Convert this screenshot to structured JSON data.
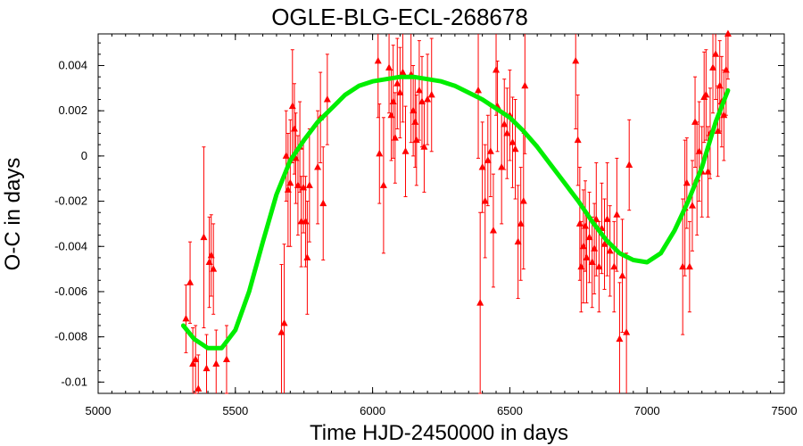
{
  "chart_data": {
    "type": "scatter",
    "title": "OGLE-BLG-ECL-268678",
    "xlabel": "Time HJD-2450000 in days",
    "ylabel": "O-C in days",
    "xlim": [
      5000,
      7500
    ],
    "ylim": [
      -0.0105,
      0.0054
    ],
    "xticks": [
      5000,
      5500,
      6000,
      6500,
      7000,
      7500
    ],
    "xtick_labels": [
      "5000",
      "5500",
      "6000",
      "6500",
      "7000",
      "7500"
    ],
    "yticks": [
      -0.01,
      -0.008,
      -0.006,
      -0.004,
      -0.002,
      0,
      0.002,
      0.004
    ],
    "ytick_labels": [
      "-0.01",
      "-0.008",
      "-0.006",
      "-0.004",
      "-0.002",
      "0",
      "0.002",
      "0.004"
    ],
    "grid": false,
    "colors": {
      "data": "#ff0000",
      "fit": "#00ee00",
      "axes": "#000000"
    },
    "series": [
      {
        "marker": "triangle",
        "error_bars": true,
        "points": [
          {
            "x": 5320,
            "y": -0.0072,
            "err": 0.0015
          },
          {
            "x": 5335,
            "y": -0.0056,
            "err": 0.0018
          },
          {
            "x": 5345,
            "y": -0.0092,
            "err": 0.0016
          },
          {
            "x": 5355,
            "y": -0.009,
            "err": 0.0015
          },
          {
            "x": 5365,
            "y": -0.0103,
            "err": 0.0015
          },
          {
            "x": 5385,
            "y": -0.0036,
            "err": 0.004
          },
          {
            "x": 5395,
            "y": -0.0094,
            "err": 0.0015
          },
          {
            "x": 5405,
            "y": -0.0047,
            "err": 0.002
          },
          {
            "x": 5412,
            "y": -0.0044,
            "err": 0.0018
          },
          {
            "x": 5420,
            "y": -0.005,
            "err": 0.002
          },
          {
            "x": 5430,
            "y": -0.0092,
            "err": 0.0015
          },
          {
            "x": 5468,
            "y": -0.009,
            "err": 0.0015
          },
          {
            "x": 5668,
            "y": -0.0078,
            "err": 0.003
          },
          {
            "x": 5678,
            "y": -0.0074,
            "err": 0.0035
          },
          {
            "x": 5685,
            "y": 0.0,
            "err": 0.002
          },
          {
            "x": 5692,
            "y": -0.0015,
            "err": 0.0025
          },
          {
            "x": 5700,
            "y": -0.0012,
            "err": 0.0028
          },
          {
            "x": 5708,
            "y": 0.0022,
            "err": 0.0025
          },
          {
            "x": 5715,
            "y": 0.0012,
            "err": 0.002
          },
          {
            "x": 5720,
            "y": -0.0001,
            "err": 0.002
          },
          {
            "x": 5728,
            "y": -0.0013,
            "err": 0.0022
          },
          {
            "x": 5735,
            "y": 0.0004,
            "err": 0.002
          },
          {
            "x": 5740,
            "y": -0.0029,
            "err": 0.002
          },
          {
            "x": 5748,
            "y": -0.0014,
            "err": 0.002
          },
          {
            "x": 5756,
            "y": -0.0029,
            "err": 0.002
          },
          {
            "x": 5762,
            "y": -0.0045,
            "err": 0.0025
          },
          {
            "x": 5770,
            "y": -0.0013,
            "err": 0.0025
          },
          {
            "x": 5800,
            "y": -0.0005,
            "err": 0.0025
          },
          {
            "x": 5810,
            "y": 0.0017,
            "err": 0.002
          },
          {
            "x": 5820,
            "y": -0.0021,
            "err": 0.0025
          },
          {
            "x": 5835,
            "y": 0.0025,
            "err": 0.002
          },
          {
            "x": 6020,
            "y": 0.0042,
            "err": 0.0025
          },
          {
            "x": 6025,
            "y": 0.0001,
            "err": 0.0022
          },
          {
            "x": 6040,
            "y": -0.0013,
            "err": 0.003
          },
          {
            "x": 6060,
            "y": 0.0039,
            "err": 0.002
          },
          {
            "x": 6068,
            "y": 0.0018,
            "err": 0.002
          },
          {
            "x": 6075,
            "y": 0.0024,
            "err": 0.0025
          },
          {
            "x": 6082,
            "y": 0.0008,
            "err": 0.002
          },
          {
            "x": 6090,
            "y": 0.0032,
            "err": 0.002
          },
          {
            "x": 6100,
            "y": 0.0028,
            "err": 0.002
          },
          {
            "x": 6110,
            "y": 0.0037,
            "err": 0.0022
          },
          {
            "x": 6120,
            "y": 0.0002,
            "err": 0.002
          },
          {
            "x": 6140,
            "y": 0.0036,
            "err": 0.003
          },
          {
            "x": 6148,
            "y": 0.002,
            "err": 0.002
          },
          {
            "x": 6155,
            "y": 0.0015,
            "err": 0.002
          },
          {
            "x": 6160,
            "y": 0.0007,
            "err": 0.002
          },
          {
            "x": 6170,
            "y": 0.0029,
            "err": 0.0022
          },
          {
            "x": 6180,
            "y": 0.0024,
            "err": 0.002
          },
          {
            "x": 6188,
            "y": 0.0004,
            "err": 0.002
          },
          {
            "x": 6200,
            "y": 0.0025,
            "err": 0.002
          },
          {
            "x": 6215,
            "y": 0.0027,
            "err": 0.0025
          },
          {
            "x": 6385,
            "y": 0.0029,
            "err": 0.003
          },
          {
            "x": 6392,
            "y": -0.0065,
            "err": 0.004
          },
          {
            "x": 6400,
            "y": -0.0005,
            "err": 0.002
          },
          {
            "x": 6410,
            "y": -0.002,
            "err": 0.0025
          },
          {
            "x": 6420,
            "y": -0.0002,
            "err": 0.002
          },
          {
            "x": 6430,
            "y": 0.0002,
            "err": 0.002
          },
          {
            "x": 6440,
            "y": -0.0033,
            "err": 0.0025
          },
          {
            "x": 6450,
            "y": 0.0038,
            "err": 0.002
          },
          {
            "x": 6455,
            "y": 0.0022,
            "err": 0.002
          },
          {
            "x": 6470,
            "y": -0.0005,
            "err": 0.0025
          },
          {
            "x": 6480,
            "y": 0.0014,
            "err": 0.002
          },
          {
            "x": 6490,
            "y": 0.001,
            "err": 0.002
          },
          {
            "x": 6500,
            "y": 0.0018,
            "err": 0.002
          },
          {
            "x": 6510,
            "y": 0.0006,
            "err": 0.002
          },
          {
            "x": 6520,
            "y": 0.0003,
            "err": 0.0022
          },
          {
            "x": 6530,
            "y": -0.0038,
            "err": 0.0025
          },
          {
            "x": 6540,
            "y": -0.003,
            "err": 0.0025
          },
          {
            "x": 6550,
            "y": -0.002,
            "err": 0.003
          },
          {
            "x": 6555,
            "y": 0.0031,
            "err": 0.003
          },
          {
            "x": 6740,
            "y": 0.0042,
            "err": 0.003
          },
          {
            "x": 6748,
            "y": 0.0007,
            "err": 0.002
          },
          {
            "x": 6755,
            "y": -0.003,
            "err": 0.0025
          },
          {
            "x": 6760,
            "y": -0.0049,
            "err": 0.002
          },
          {
            "x": 6768,
            "y": -0.004,
            "err": 0.0025
          },
          {
            "x": 6775,
            "y": -0.0031,
            "err": 0.002
          },
          {
            "x": 6780,
            "y": -0.0045,
            "err": 0.002
          },
          {
            "x": 6790,
            "y": -0.0036,
            "err": 0.002
          },
          {
            "x": 6800,
            "y": -0.0047,
            "err": 0.002
          },
          {
            "x": 6808,
            "y": -0.0041,
            "err": 0.002
          },
          {
            "x": 6815,
            "y": -0.0028,
            "err": 0.0025
          },
          {
            "x": 6825,
            "y": -0.0049,
            "err": 0.002
          },
          {
            "x": 6835,
            "y": -0.0032,
            "err": 0.002
          },
          {
            "x": 6845,
            "y": -0.0039,
            "err": 0.002
          },
          {
            "x": 6855,
            "y": -0.0028,
            "err": 0.0025
          },
          {
            "x": 6865,
            "y": -0.0042,
            "err": 0.002
          },
          {
            "x": 6880,
            "y": -0.0049,
            "err": 0.002
          },
          {
            "x": 6890,
            "y": -0.0026,
            "err": 0.0025
          },
          {
            "x": 6900,
            "y": -0.0081,
            "err": 0.0025
          },
          {
            "x": 6910,
            "y": -0.0053,
            "err": 0.0025
          },
          {
            "x": 6925,
            "y": -0.0078,
            "err": 0.0035
          },
          {
            "x": 6935,
            "y": -0.0004,
            "err": 0.002
          },
          {
            "x": 7130,
            "y": -0.0049,
            "err": 0.003
          },
          {
            "x": 7138,
            "y": -0.0023,
            "err": 0.003
          },
          {
            "x": 7145,
            "y": -0.0012,
            "err": 0.002
          },
          {
            "x": 7155,
            "y": -0.0049,
            "err": 0.002
          },
          {
            "x": 7165,
            "y": -0.0022,
            "err": 0.002
          },
          {
            "x": 7175,
            "y": 0.0015,
            "err": 0.002
          },
          {
            "x": 7182,
            "y": -0.001,
            "err": 0.0025
          },
          {
            "x": 7190,
            "y": 0.0002,
            "err": 0.0022
          },
          {
            "x": 7200,
            "y": -0.0007,
            "err": 0.002
          },
          {
            "x": 7208,
            "y": 0.0026,
            "err": 0.002
          },
          {
            "x": 7215,
            "y": 0.0027,
            "err": 0.002
          },
          {
            "x": 7222,
            "y": -0.0007,
            "err": 0.002
          },
          {
            "x": 7230,
            "y": 0.001,
            "err": 0.002
          },
          {
            "x": 7240,
            "y": 0.0039,
            "err": 0.002
          },
          {
            "x": 7250,
            "y": 0.0045,
            "err": 0.002
          },
          {
            "x": 7258,
            "y": 0.0011,
            "err": 0.002
          },
          {
            "x": 7265,
            "y": 0.0031,
            "err": 0.002
          },
          {
            "x": 7272,
            "y": 0.0024,
            "err": 0.002
          },
          {
            "x": 7280,
            "y": 0.0018,
            "err": 0.002
          },
          {
            "x": 7288,
            "y": 0.0038,
            "err": 0.002
          },
          {
            "x": 7295,
            "y": 0.0054,
            "err": 0.002
          }
        ]
      },
      {
        "marker": "line",
        "points": [
          {
            "x": 5310,
            "y": -0.0075
          },
          {
            "x": 5350,
            "y": -0.0081
          },
          {
            "x": 5400,
            "y": -0.0085
          },
          {
            "x": 5450,
            "y": -0.0085
          },
          {
            "x": 5500,
            "y": -0.0077
          },
          {
            "x": 5550,
            "y": -0.006
          },
          {
            "x": 5600,
            "y": -0.0038
          },
          {
            "x": 5650,
            "y": -0.0017
          },
          {
            "x": 5700,
            "y": -0.0002
          },
          {
            "x": 5750,
            "y": 0.0007
          },
          {
            "x": 5800,
            "y": 0.0015
          },
          {
            "x": 5850,
            "y": 0.0021
          },
          {
            "x": 5900,
            "y": 0.0027
          },
          {
            "x": 5950,
            "y": 0.0031
          },
          {
            "x": 6000,
            "y": 0.0033
          },
          {
            "x": 6050,
            "y": 0.0034
          },
          {
            "x": 6100,
            "y": 0.0035
          },
          {
            "x": 6150,
            "y": 0.0035
          },
          {
            "x": 6200,
            "y": 0.0034
          },
          {
            "x": 6250,
            "y": 0.0033
          },
          {
            "x": 6300,
            "y": 0.0031
          },
          {
            "x": 6350,
            "y": 0.0028
          },
          {
            "x": 6400,
            "y": 0.0025
          },
          {
            "x": 6450,
            "y": 0.0021
          },
          {
            "x": 6500,
            "y": 0.0017
          },
          {
            "x": 6550,
            "y": 0.0011
          },
          {
            "x": 6600,
            "y": 0.0004
          },
          {
            "x": 6650,
            "y": -0.0004
          },
          {
            "x": 6700,
            "y": -0.0012
          },
          {
            "x": 6750,
            "y": -0.002
          },
          {
            "x": 6800,
            "y": -0.0029
          },
          {
            "x": 6850,
            "y": -0.0037
          },
          {
            "x": 6900,
            "y": -0.0043
          },
          {
            "x": 6950,
            "y": -0.0046
          },
          {
            "x": 7000,
            "y": -0.0047
          },
          {
            "x": 7050,
            "y": -0.0043
          },
          {
            "x": 7100,
            "y": -0.0033
          },
          {
            "x": 7150,
            "y": -0.002
          },
          {
            "x": 7200,
            "y": -0.0005
          },
          {
            "x": 7250,
            "y": 0.0015
          },
          {
            "x": 7295,
            "y": 0.0029
          }
        ]
      }
    ]
  }
}
